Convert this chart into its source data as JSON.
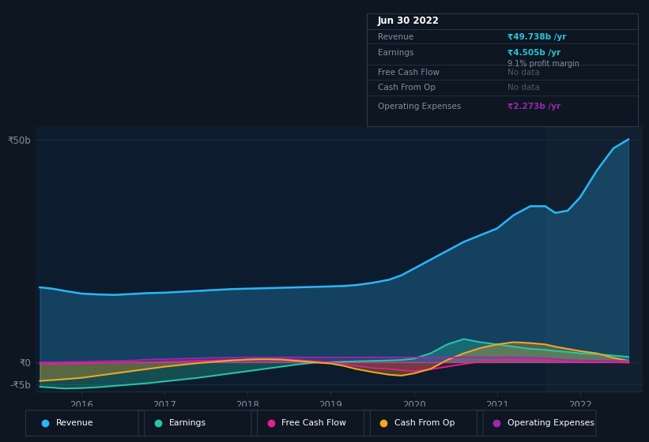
{
  "background_color": "#0e1621",
  "plot_bg_color": "#0d1b2e",
  "ylim_min": -6500000000,
  "ylim_max": 53000000000,
  "xlim_min": 2015.45,
  "xlim_max": 2022.75,
  "shaded_x_start": 2021.58,
  "shaded_x_end": 2022.75,
  "shaded_color": "#111f30",
  "revenue_color": "#29b6f6",
  "earnings_color": "#26c6a6",
  "fcf_color": "#e91e8c",
  "cashfromop_color": "#f5a623",
  "opex_color": "#9c27b0",
  "ytick_positions": [
    -5000000000,
    0,
    50000000000
  ],
  "ytick_labels": [
    "-₹5b",
    "₹0",
    "₹50b"
  ],
  "xtick_positions": [
    2016,
    2017,
    2018,
    2019,
    2020,
    2021,
    2022
  ],
  "xtick_labels": [
    "2016",
    "2017",
    "2018",
    "2019",
    "2020",
    "2021",
    "2022"
  ],
  "tick_color": "#8090a0",
  "grid_color": "#1e2d3d",
  "legend_labels": [
    "Revenue",
    "Earnings",
    "Free Cash Flow",
    "Cash From Op",
    "Operating Expenses"
  ],
  "legend_colors": [
    "#29b6f6",
    "#26c6a6",
    "#e91e8c",
    "#f5a623",
    "#9c27b0"
  ],
  "info_bg": "#0d1621",
  "info_border": "#2a3a50",
  "info_title": "Jun 30 2022",
  "info_title_color": "#ffffff",
  "info_label_color": "#8090a0",
  "info_rows": [
    {
      "label": "Revenue",
      "value": "₹49.738b /yr",
      "value_color": "#26c6da"
    },
    {
      "label": "Earnings",
      "value": "₹4.505b /yr",
      "value_color": "#26c6da",
      "sub": "9.1% profit margin",
      "sub_color": "#8090a0"
    },
    {
      "label": "Free Cash Flow",
      "value": "No data",
      "value_color": "#4a5a6a"
    },
    {
      "label": "Cash From Op",
      "value": "No data",
      "value_color": "#4a5a6a"
    },
    {
      "label": "Operating Expenses",
      "value": "₹2.273b /yr",
      "value_color": "#9c27b0"
    }
  ]
}
